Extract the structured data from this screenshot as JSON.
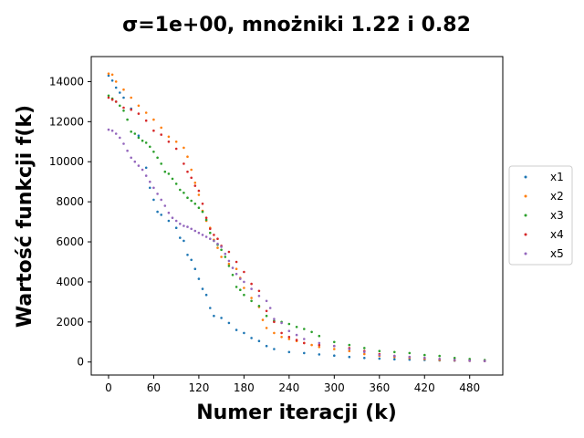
{
  "chart_data": {
    "type": "scatter",
    "title": "σ=1e+00, mnożniki 1.22 i 0.82",
    "xlabel": "Numer iteracji (k)",
    "ylabel": "Wartość funkcji f(k)",
    "xlim": [
      -23,
      524
    ],
    "ylim": [
      -650,
      15250
    ],
    "xticks": [
      0,
      60,
      120,
      180,
      240,
      300,
      360,
      420,
      480
    ],
    "yticks": [
      0,
      2000,
      4000,
      6000,
      8000,
      10000,
      12000,
      14000
    ],
    "grid": false,
    "legend_position": "center-right",
    "series": [
      {
        "name": "x1",
        "color": "#1f77b4",
        "points": [
          [
            0,
            14300
          ],
          [
            5,
            14050
          ],
          [
            10,
            13700
          ],
          [
            15,
            13450
          ],
          [
            20,
            13200
          ],
          [
            30,
            12650
          ],
          [
            40,
            11300
          ],
          [
            50,
            9700
          ],
          [
            55,
            8700
          ],
          [
            60,
            8100
          ],
          [
            65,
            7500
          ],
          [
            70,
            7350
          ],
          [
            80,
            7050
          ],
          [
            90,
            6700
          ],
          [
            95,
            6200
          ],
          [
            100,
            6050
          ],
          [
            105,
            5350
          ],
          [
            110,
            5100
          ],
          [
            115,
            4650
          ],
          [
            120,
            4150
          ],
          [
            125,
            3650
          ],
          [
            130,
            3350
          ],
          [
            135,
            2700
          ],
          [
            140,
            2300
          ],
          [
            150,
            2200
          ],
          [
            160,
            1950
          ],
          [
            170,
            1600
          ],
          [
            180,
            1450
          ],
          [
            190,
            1200
          ],
          [
            200,
            1050
          ],
          [
            210,
            800
          ],
          [
            220,
            650
          ],
          [
            240,
            500
          ],
          [
            260,
            450
          ],
          [
            280,
            380
          ],
          [
            300,
            320
          ],
          [
            320,
            250
          ],
          [
            340,
            200
          ],
          [
            360,
            170
          ],
          [
            380,
            140
          ],
          [
            400,
            120
          ],
          [
            420,
            100
          ],
          [
            440,
            80
          ],
          [
            460,
            70
          ],
          [
            480,
            60
          ],
          [
            500,
            50
          ]
        ]
      },
      {
        "name": "x2",
        "color": "#ff7f0e",
        "points": [
          [
            0,
            14400
          ],
          [
            5,
            14350
          ],
          [
            10,
            14000
          ],
          [
            20,
            13600
          ],
          [
            30,
            13200
          ],
          [
            40,
            12800
          ],
          [
            50,
            12450
          ],
          [
            60,
            12100
          ],
          [
            70,
            11700
          ],
          [
            80,
            11250
          ],
          [
            90,
            11000
          ],
          [
            100,
            10700
          ],
          [
            105,
            10250
          ],
          [
            110,
            9600
          ],
          [
            115,
            8950
          ],
          [
            120,
            8350
          ],
          [
            125,
            7550
          ],
          [
            130,
            7050
          ],
          [
            135,
            6700
          ],
          [
            140,
            6100
          ],
          [
            145,
            5700
          ],
          [
            150,
            5250
          ],
          [
            160,
            4900
          ],
          [
            170,
            4650
          ],
          [
            175,
            4200
          ],
          [
            180,
            3700
          ],
          [
            190,
            3200
          ],
          [
            200,
            2750
          ],
          [
            205,
            2100
          ],
          [
            210,
            1700
          ],
          [
            220,
            1450
          ],
          [
            230,
            1250
          ],
          [
            240,
            1150
          ],
          [
            250,
            1050
          ],
          [
            260,
            950
          ],
          [
            270,
            850
          ],
          [
            280,
            750
          ],
          [
            300,
            650
          ],
          [
            320,
            550
          ],
          [
            340,
            400
          ],
          [
            360,
            300
          ],
          [
            380,
            250
          ],
          [
            400,
            200
          ],
          [
            420,
            150
          ],
          [
            440,
            100
          ],
          [
            460,
            80
          ],
          [
            480,
            60
          ],
          [
            500,
            50
          ]
        ]
      },
      {
        "name": "x3",
        "color": "#2ca02c",
        "points": [
          [
            0,
            13300
          ],
          [
            5,
            13150
          ],
          [
            10,
            13000
          ],
          [
            15,
            12800
          ],
          [
            20,
            12550
          ],
          [
            25,
            12100
          ],
          [
            30,
            11500
          ],
          [
            35,
            11400
          ],
          [
            40,
            11200
          ],
          [
            45,
            11050
          ],
          [
            50,
            10950
          ],
          [
            55,
            10750
          ],
          [
            60,
            10500
          ],
          [
            65,
            10200
          ],
          [
            70,
            9900
          ],
          [
            75,
            9500
          ],
          [
            80,
            9400
          ],
          [
            85,
            9150
          ],
          [
            90,
            8900
          ],
          [
            95,
            8600
          ],
          [
            100,
            8450
          ],
          [
            105,
            8200
          ],
          [
            110,
            8050
          ],
          [
            115,
            7900
          ],
          [
            120,
            7700
          ],
          [
            125,
            7500
          ],
          [
            130,
            7100
          ],
          [
            135,
            6450
          ],
          [
            140,
            6050
          ],
          [
            145,
            5850
          ],
          [
            150,
            5600
          ],
          [
            155,
            5250
          ],
          [
            160,
            4800
          ],
          [
            165,
            4350
          ],
          [
            170,
            3750
          ],
          [
            175,
            3600
          ],
          [
            180,
            3350
          ],
          [
            190,
            3050
          ],
          [
            200,
            2800
          ],
          [
            210,
            2300
          ],
          [
            220,
            2050
          ],
          [
            230,
            2000
          ],
          [
            240,
            1900
          ],
          [
            250,
            1750
          ],
          [
            260,
            1650
          ],
          [
            270,
            1500
          ],
          [
            280,
            1300
          ],
          [
            300,
            1000
          ],
          [
            320,
            850
          ],
          [
            340,
            700
          ],
          [
            360,
            550
          ],
          [
            380,
            500
          ],
          [
            400,
            450
          ],
          [
            420,
            350
          ],
          [
            440,
            300
          ],
          [
            460,
            200
          ],
          [
            480,
            150
          ],
          [
            500,
            100
          ]
        ]
      },
      {
        "name": "x4",
        "color": "#d62728",
        "points": [
          [
            0,
            13200
          ],
          [
            5,
            13100
          ],
          [
            10,
            13000
          ],
          [
            20,
            12700
          ],
          [
            30,
            12600
          ],
          [
            40,
            12400
          ],
          [
            50,
            12050
          ],
          [
            60,
            11550
          ],
          [
            70,
            11350
          ],
          [
            80,
            11000
          ],
          [
            90,
            10650
          ],
          [
            100,
            9900
          ],
          [
            105,
            9500
          ],
          [
            110,
            9200
          ],
          [
            115,
            8800
          ],
          [
            120,
            8550
          ],
          [
            125,
            7900
          ],
          [
            130,
            7200
          ],
          [
            135,
            6650
          ],
          [
            140,
            6350
          ],
          [
            145,
            6150
          ],
          [
            150,
            5800
          ],
          [
            160,
            5500
          ],
          [
            170,
            5000
          ],
          [
            180,
            4500
          ],
          [
            190,
            3900
          ],
          [
            200,
            3550
          ],
          [
            210,
            2550
          ],
          [
            220,
            2000
          ],
          [
            230,
            1450
          ],
          [
            240,
            1250
          ],
          [
            250,
            1100
          ],
          [
            260,
            950
          ],
          [
            280,
            850
          ],
          [
            300,
            800
          ],
          [
            320,
            700
          ],
          [
            340,
            550
          ],
          [
            360,
            400
          ],
          [
            380,
            300
          ],
          [
            400,
            250
          ],
          [
            420,
            200
          ],
          [
            440,
            150
          ],
          [
            460,
            100
          ],
          [
            480,
            70
          ],
          [
            500,
            50
          ]
        ]
      },
      {
        "name": "x5",
        "color": "#9467bd",
        "points": [
          [
            0,
            11600
          ],
          [
            5,
            11550
          ],
          [
            10,
            11400
          ],
          [
            15,
            11200
          ],
          [
            20,
            10900
          ],
          [
            25,
            10550
          ],
          [
            30,
            10200
          ],
          [
            35,
            10000
          ],
          [
            40,
            9800
          ],
          [
            45,
            9600
          ],
          [
            50,
            9300
          ],
          [
            55,
            9000
          ],
          [
            60,
            8700
          ],
          [
            65,
            8400
          ],
          [
            70,
            8100
          ],
          [
            75,
            7800
          ],
          [
            80,
            7450
          ],
          [
            85,
            7200
          ],
          [
            90,
            7050
          ],
          [
            95,
            6900
          ],
          [
            100,
            6800
          ],
          [
            105,
            6750
          ],
          [
            110,
            6650
          ],
          [
            115,
            6550
          ],
          [
            120,
            6450
          ],
          [
            125,
            6350
          ],
          [
            130,
            6250
          ],
          [
            135,
            6150
          ],
          [
            140,
            6050
          ],
          [
            145,
            5900
          ],
          [
            150,
            5750
          ],
          [
            155,
            5400
          ],
          [
            160,
            5050
          ],
          [
            165,
            4700
          ],
          [
            170,
            4400
          ],
          [
            175,
            4150
          ],
          [
            180,
            4000
          ],
          [
            190,
            3650
          ],
          [
            200,
            3300
          ],
          [
            210,
            3050
          ],
          [
            215,
            2700
          ],
          [
            220,
            2150
          ],
          [
            230,
            1950
          ],
          [
            240,
            1550
          ],
          [
            250,
            1350
          ],
          [
            260,
            1150
          ],
          [
            280,
            950
          ],
          [
            300,
            800
          ],
          [
            320,
            650
          ],
          [
            340,
            500
          ],
          [
            360,
            350
          ],
          [
            380,
            300
          ],
          [
            400,
            250
          ],
          [
            420,
            200
          ],
          [
            440,
            150
          ],
          [
            460,
            100
          ],
          [
            480,
            70
          ],
          [
            500,
            50
          ]
        ]
      }
    ]
  }
}
